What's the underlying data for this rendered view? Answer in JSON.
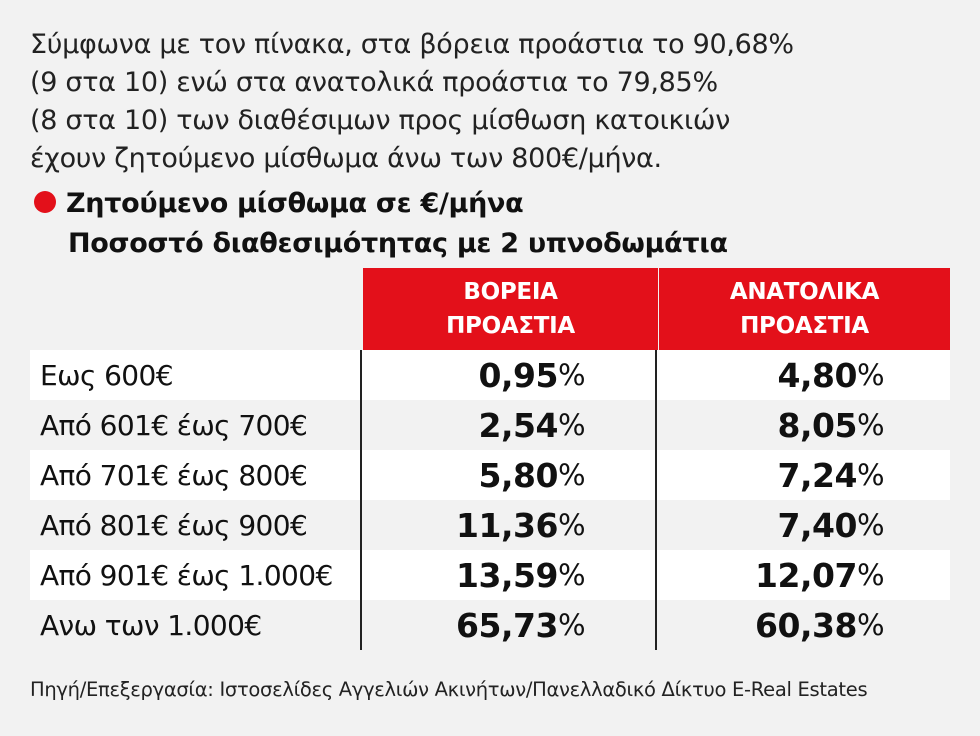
{
  "intro": {
    "lines": [
      "Σύμφωνα με τον πίνακα, στα βόρεια προάστια το 90,68%",
      "(9 στα 10) ενώ στα ανατολικά προάστια το 79,85%",
      "(8 στα 10) των διαθέσιμων προς μίσθωση κατοικιών",
      "έχουν ζητούμενο μίσθωμα άνω των 800€/μήνα."
    ]
  },
  "heading": {
    "line1": "Ζητούμενο μίσθωμα σε €/μήνα",
    "line2": "Ποσοστό διαθεσιμότητας με 2 υπνοδωμάτια",
    "bullet_color": "#e3101a"
  },
  "colors": {
    "accent": "#e3101a",
    "row_alt": "#ffffff",
    "bg": "#f2f2f2"
  },
  "chart_data": {
    "type": "table",
    "columns": [
      {
        "line1": "ΒΟΡΕΙΑ",
        "line2": "ΠΡΟΑΣΤΙΑ"
      },
      {
        "line1": "ΑΝΑΤΟΛΙΚΑ",
        "line2": "ΠΡΟΑΣΤΙΑ"
      }
    ],
    "percent_sign": "%",
    "rows": [
      {
        "label": "Εως 600€",
        "north": "0,95",
        "east": "4,80"
      },
      {
        "label": "Από 601€ έως 700€",
        "north": "2,54",
        "east": "8,05"
      },
      {
        "label": "Από 701€ έως 800€",
        "north": "5,80",
        "east": "7,24"
      },
      {
        "label": "Από 801€ έως 900€",
        "north": "11,36",
        "east": "7,40"
      },
      {
        "label": "Από 901€ έως 1.000€",
        "north": "13,59",
        "east": "12,07"
      },
      {
        "label": "Ανω των 1.000€",
        "north": "65,73",
        "east": "60,38"
      }
    ]
  },
  "source": "Πηγή/Επεξεργασία: Ιστοσελίδες Αγγελιών Ακινήτων/Πανελλαδικό Δίκτυο E-Real Estates"
}
